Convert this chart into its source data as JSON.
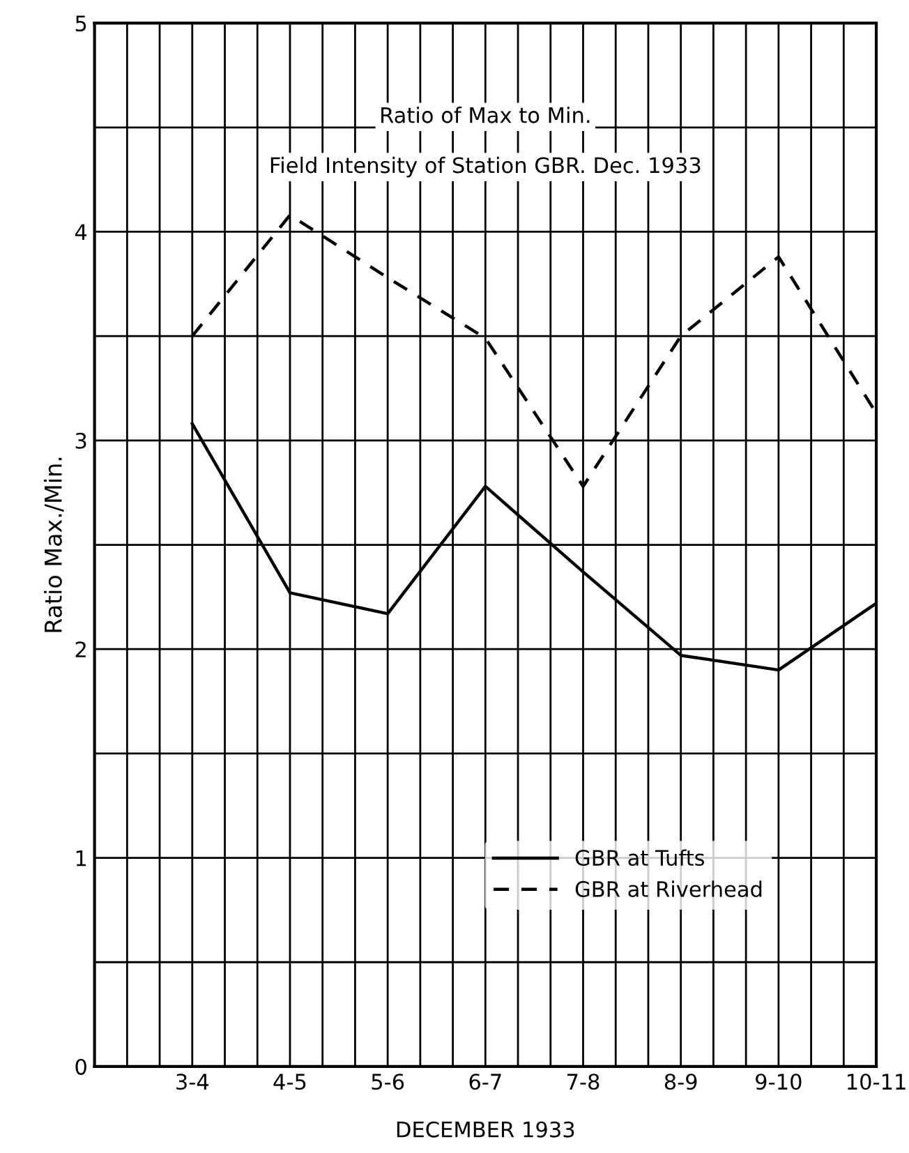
{
  "chart_data": {
    "type": "line",
    "title": "Ratio of Max to Min.",
    "subtitle": "Field Intensity of Station GBR. Dec. 1933",
    "xlabel": "DECEMBER 1933",
    "ylabel": "Ratio Max./Min.",
    "categories": [
      "3-4",
      "4-5",
      "5-6",
      "6-7",
      "7-8",
      "8-9",
      "9-10",
      "10-11"
    ],
    "series": [
      {
        "name": "GBR at Tufts",
        "color": "#000000",
        "line_style": "solid",
        "values": [
          3.08,
          2.27,
          2.17,
          2.78,
          2.37,
          1.97,
          1.9,
          2.22
        ]
      },
      {
        "name": "GBR at Riverhead",
        "color": "#000000",
        "line_style": "dashed",
        "values": [
          3.5,
          4.08,
          3.78,
          3.49,
          2.78,
          3.5,
          3.88,
          3.13
        ]
      }
    ],
    "ylim": [
      0,
      5
    ],
    "yticks": [
      0,
      {
        "value": 0.5,
        "label": null
      },
      1,
      {
        "value": 1.5,
        "label": null
      },
      2,
      {
        "value": 2.5,
        "label": null
      },
      3,
      {
        "value": 3.5,
        "label": null
      },
      4,
      {
        "value": 4.5,
        "label": null
      },
      5
    ],
    "grid": true,
    "legend": "lower right",
    "marker": "none"
  }
}
